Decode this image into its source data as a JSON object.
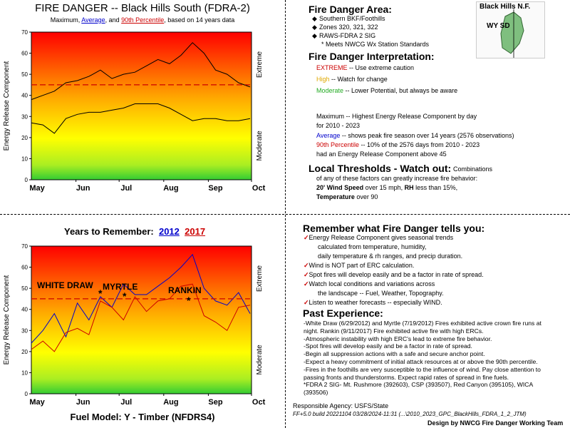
{
  "top": {
    "title": "FIRE DANGER -- Black Hills South (FDRA-2)",
    "subtitle": {
      "prefix": "Maximum,",
      "average": "Average",
      "mid": ", and",
      "percentile": "90th Percentile",
      "suffix": ", based on 14 years data"
    }
  },
  "bottom": {
    "title_prefix": "Years to Remember:",
    "year1": "2012",
    "year2": "2017",
    "fuel_model": "Fuel Model: Y - Timber (NFDRS4)",
    "fire_labels": [
      "WHITE DRAW",
      "MYRTLE",
      "RANKIN"
    ]
  },
  "chart_common": {
    "ylabel": "Energy Release Component",
    "right_top": "Extreme",
    "right_bottom": "Moderate",
    "yticks": [
      0,
      10,
      20,
      30,
      40,
      50,
      60,
      70
    ],
    "months": [
      "May",
      "Jun",
      "Jul",
      "Aug",
      "Sep",
      "Oct"
    ],
    "threshold": 45
  },
  "chart_data": [
    {
      "type": "line",
      "title": "FIRE DANGER -- Black Hills South (FDRA-2)",
      "ylabel": "Energy Release Component",
      "ylim": [
        0,
        70
      ],
      "x": [
        0,
        8,
        16,
        24,
        32,
        40,
        48,
        56,
        64,
        72,
        80,
        88,
        96,
        104,
        112,
        120,
        128,
        136,
        144,
        152
      ],
      "x_unit": "days since May 1",
      "series": [
        {
          "name": "Maximum",
          "color": "#000000",
          "values": [
            38,
            40,
            42,
            46,
            47,
            49,
            52,
            48,
            50,
            51,
            54,
            57,
            55,
            59,
            65,
            60,
            52,
            50,
            46,
            44
          ]
        },
        {
          "name": "Average",
          "color": "#000000",
          "values": [
            27,
            26,
            22,
            29,
            31,
            32,
            32,
            33,
            34,
            36,
            36,
            36,
            34,
            31,
            28,
            29,
            29,
            28,
            28,
            29
          ]
        },
        {
          "name": "90th Percentile",
          "color": "#cc0000",
          "style": "dashed",
          "values": [
            45,
            45,
            45,
            45,
            45,
            45,
            45,
            45,
            45,
            45,
            45,
            45,
            45,
            45,
            45,
            45,
            45,
            45,
            45,
            45
          ]
        }
      ]
    },
    {
      "type": "line",
      "title": "Years to Remember: 2012 2017",
      "ylabel": "Energy Release Component",
      "ylim": [
        0,
        70
      ],
      "x": [
        0,
        8,
        16,
        24,
        32,
        40,
        48,
        56,
        64,
        72,
        80,
        88,
        96,
        104,
        112,
        120,
        128,
        136,
        144,
        152
      ],
      "x_unit": "days since May 1",
      "series": [
        {
          "name": "2012",
          "color": "#0000cc",
          "values": [
            24,
            30,
            38,
            27,
            43,
            35,
            46,
            41,
            52,
            47,
            47,
            51,
            55,
            60,
            66,
            50,
            44,
            42,
            48,
            38
          ]
        },
        {
          "name": "2017",
          "color": "#cc0000",
          "values": [
            21,
            25,
            20,
            29,
            31,
            28,
            44,
            41,
            35,
            46,
            39,
            44,
            45,
            51,
            52,
            37,
            34,
            30,
            41,
            42
          ]
        },
        {
          "name": "90th Percentile",
          "color": "#cc0000",
          "style": "dashed",
          "values": [
            45,
            45,
            45,
            45,
            45,
            45,
            45,
            45,
            45,
            45,
            45,
            45,
            45,
            45,
            45,
            45,
            45,
            45,
            45,
            45
          ]
        }
      ],
      "annotations": [
        {
          "label": "WHITE DRAW",
          "date": "6/29/2012"
        },
        {
          "label": "MYRTLE",
          "date": "7/19/2012"
        },
        {
          "label": "RANKIN",
          "date": "9/11/2017"
        }
      ]
    }
  ],
  "area": {
    "heading": "Fire Danger Area:",
    "bullets": [
      "Southern BKF/Foothills",
      "Zones 320, 321, 322",
      "RAWS-FDRA 2 SIG"
    ],
    "note": "* Meets NWCG Wx Station Standards",
    "map_title": "Black Hills N.F.",
    "map_states": "WY SD"
  },
  "interpretation": {
    "heading": "Fire Danger Interpretation:",
    "extreme_label": "EXTREME",
    "extreme_text": " -- Use extreme caution",
    "high_label": "High",
    "high_text": " -- Watch for change",
    "moderate_label": "Moderate",
    "moderate_text": " -- Lower Potential, but always be aware",
    "max_line1": "Maximum  -- Highest Energy Release Component by day",
    "max_line2": "for 2010 - 2023",
    "avg_label": "Average",
    "avg_text": " -- shows peak fire season over 14 years (2576 observations)",
    "pct_label": "90th Percentile",
    "pct_text": "  -- 10% of the 2576 days from 2010 - 2023",
    "pct_line2": "had an Energy Release Component above 45"
  },
  "thresholds": {
    "heading": "Local Thresholds - Watch out:",
    "intro1": "Combinations",
    "intro2": "of any of these factors can greatly increase fire behavior:",
    "wind_label": "20' Wind Speed",
    "wind_text": " over 15 mph, ",
    "rh_label": "RH",
    "rh_text": "  less than 15%,",
    "temp_label": "Temperature",
    "temp_text": " over 90"
  },
  "remember": {
    "heading": "Remember what Fire Danger tells you:",
    "items": [
      [
        "Energy Release Component gives seasonal trends",
        "calculated from temperature, humidity,",
        "daily temperature & rh ranges, and precip duration."
      ],
      [
        "Wind is NOT part of ERC calculation."
      ],
      [
        "Spot fires will develop easily and be a factor in rate of spread."
      ],
      [
        "Watch local conditions and variations across",
        "the landscape -- Fuel, Weather, Topography."
      ],
      [
        "Listen to weather forecasts -- especially WIND."
      ]
    ]
  },
  "past": {
    "heading": "Past Experience:",
    "lines": [
      "-White Draw (6/29/2012) and Myrtle (7/19/2012) Fires exhibited active crown fire runs at",
      "night. Rankin (9/11/2017) Fire exhibited active fire with high ERCs.",
      "-Atmospheric instability with high ERC's lead to extreme fire behavior.",
      "-Spot fires will develop easily and be a factor in rate of spread.",
      "-Begin all suppression actions with a safe and secure anchor point.",
      "-Expect a heavy commitment of initial attack resources at or above the 90th percentile.",
      "-Fires in the foothills are very susceptible to the influence of wind. Pay close attention to",
      "passing fronts and thunderstorms. Expect rapid rates of spread in fine fuels.",
      "*FDRA 2 SIG- Mt. Rushmore (392603), CSP (393507), Red Canyon (395105), WICA",
      "(393506)"
    ]
  },
  "footer": {
    "agency": "Responsible Agency: USFS/State",
    "build": "FF+5.0 build 20221104 03/28/2024-11:31 (...\\2010_2023_GPC_BlackHills_FDRA_1_2_JTM)",
    "credit": "Design by NWCG Fire Danger Working Team"
  },
  "colors": {
    "extreme": "#ff0000",
    "high": "#ffff00",
    "moderate": "#33cc33",
    "blue": "#0000cc",
    "red": "#cc0000"
  }
}
